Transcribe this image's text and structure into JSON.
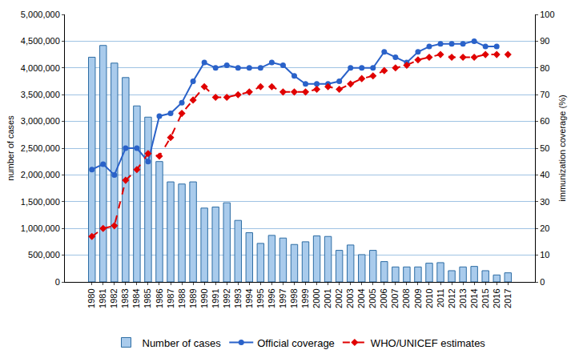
{
  "chart_data": {
    "type": "bar",
    "categories": [
      "1980",
      "1981",
      "1982",
      "1983",
      "1984",
      "1985",
      "1986",
      "1987",
      "1988",
      "1989",
      "1990",
      "1991",
      "1992",
      "1993",
      "1994",
      "1995",
      "1996",
      "1997",
      "1998",
      "1999",
      "2000",
      "2001",
      "2002",
      "2003",
      "2004",
      "2005",
      "2006",
      "2007",
      "2008",
      "2009",
      "2010",
      "2011",
      "2012",
      "2013",
      "2014",
      "2015",
      "2016",
      "2017"
    ],
    "series": [
      {
        "name": "Number of cases",
        "type": "bar",
        "color": "#a9cbec",
        "values": [
          4200000,
          4420000,
          4090000,
          3820000,
          3290000,
          3080000,
          2250000,
          1870000,
          1830000,
          1870000,
          1380000,
          1400000,
          1480000,
          1150000,
          920000,
          720000,
          870000,
          820000,
          700000,
          750000,
          860000,
          850000,
          590000,
          690000,
          510000,
          590000,
          380000,
          280000,
          280000,
          280000,
          350000,
          360000,
          210000,
          280000,
          290000,
          210000,
          130000,
          170000
        ]
      },
      {
        "name": "Official coverage",
        "type": "line",
        "axis": "y2",
        "color": "#2a62c9",
        "marker": "circle",
        "line_style": "solid",
        "values": [
          42,
          44,
          40,
          50,
          50,
          45,
          62,
          63,
          67,
          75,
          82,
          80,
          81,
          80,
          80,
          80,
          82,
          81,
          77,
          74,
          74,
          74,
          75,
          80,
          80,
          80,
          86,
          84,
          82,
          86,
          88,
          89,
          89,
          89,
          90,
          88,
          88,
          null
        ]
      },
      {
        "name": "WHO/UNICEF estimates",
        "type": "line",
        "axis": "y2",
        "color": "#e00000",
        "marker": "diamond",
        "line_style": "dashed",
        "values": [
          17,
          20,
          21,
          38,
          42,
          48,
          47,
          54,
          63,
          68,
          73,
          69,
          69,
          70,
          71,
          73,
          73,
          71,
          71,
          71,
          72,
          73,
          72,
          74,
          76,
          77,
          79,
          80,
          81,
          83,
          84,
          85,
          84,
          84,
          84,
          85,
          85,
          85
        ]
      }
    ],
    "y_label": "number of cases",
    "y2_label": "immunization coverage (%)",
    "ylim": [
      0,
      5000000
    ],
    "yticks": [
      0,
      {
        "value": 500000,
        "label": "500,000"
      },
      {
        "value": 1000000,
        "label": "1,000,000"
      },
      {
        "value": 1500000,
        "label": "1,500,000"
      },
      {
        "value": 2000000,
        "label": "2,000,000"
      },
      {
        "value": 2500000,
        "label": "2,500,000"
      },
      {
        "value": 3000000,
        "label": "3,000,000"
      },
      {
        "value": 3500000,
        "label": "3,500,000"
      },
      {
        "value": 4000000,
        "label": "4,000,000"
      },
      {
        "value": 4500000,
        "label": "4,500,000"
      },
      {
        "value": 5000000,
        "label": "5,000,000"
      }
    ],
    "y2lim": [
      0,
      100
    ],
    "y2ticks": [
      0,
      10,
      20,
      30,
      40,
      50,
      60,
      70,
      80,
      90,
      100
    ],
    "grid": true,
    "legend": "bottom"
  }
}
